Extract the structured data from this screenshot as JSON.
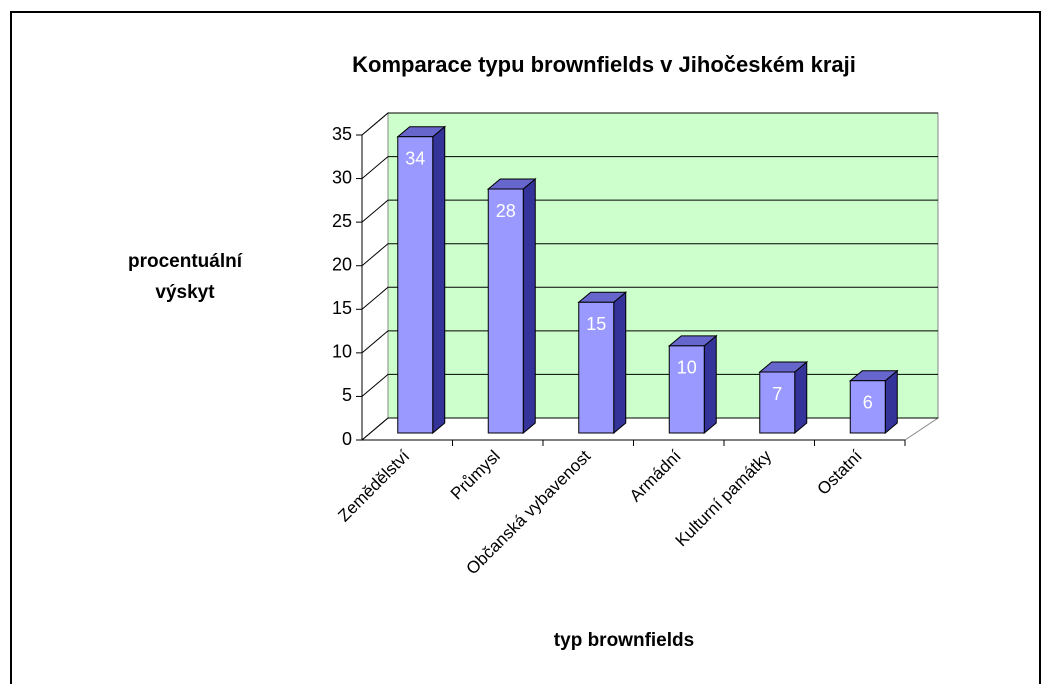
{
  "chart_data": {
    "type": "bar3d",
    "title": "Komparace typu brownfields v Jihočeském kraji",
    "ylabel": "procentuální výskyt",
    "xlabel": "typ brownfields",
    "categories": [
      "Zemědělství",
      "Průmysl",
      "Občanská vybavenost",
      "Armádní",
      "Kulturní památky",
      "Ostatní"
    ],
    "values": [
      34,
      28,
      15,
      10,
      7,
      6
    ],
    "color": "#9999ff",
    "wall_color": "#ccffcc",
    "ylim": [
      0,
      35
    ],
    "yticks": [
      0,
      5,
      10,
      15,
      20,
      25,
      30,
      35
    ],
    "grid": true
  }
}
